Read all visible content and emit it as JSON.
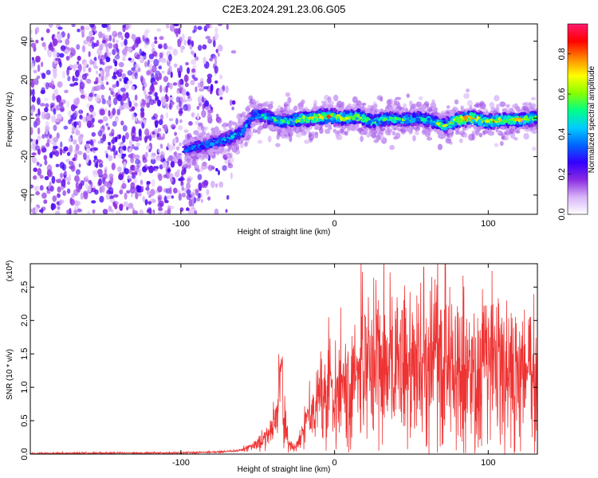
{
  "title": "C2E3.2024.291.23.06.G05",
  "chart_data": [
    {
      "type": "heatmap",
      "title": "C2E3.2024.291.23.06.G05",
      "xlabel": "Height of straight line (km)",
      "ylabel": "Frequency (Hz)",
      "xlim": [
        -198,
        132
      ],
      "ylim": [
        -50,
        49
      ],
      "x_ticks": [
        -100,
        0,
        100
      ],
      "y_ticks": [
        -40,
        -20,
        0,
        20,
        40
      ],
      "grid": false,
      "colorbar": {
        "label": "Normalized spectral amplitude",
        "range": [
          0,
          0.95
        ],
        "ticks": [
          0,
          0.2,
          0.4,
          0.6,
          0.8
        ],
        "tick_labels": [
          "0.0",
          "0.2",
          "0.4",
          "0.6",
          "0.8"
        ],
        "colormap": [
          "#ffffff",
          "#d8b4f8",
          "#8a2be2",
          "#3300ff",
          "#0066ff",
          "#00ccff",
          "#00ff88",
          "#88ff00",
          "#ffff00",
          "#ff8800",
          "#ff0000",
          "#ff1a6e"
        ]
      },
      "noise_region": {
        "x": [
          -198,
          -65
        ],
        "y": [
          -50,
          49
        ],
        "amplitude": [
          0.05,
          0.25
        ]
      },
      "signal_trace": [
        {
          "x": -98,
          "y": -17,
          "amplitude": 0.35
        },
        {
          "x": -90,
          "y": -15,
          "amplitude": 0.4
        },
        {
          "x": -80,
          "y": -13,
          "amplitude": 0.45
        },
        {
          "x": -70,
          "y": -11,
          "amplitude": 0.5
        },
        {
          "x": -60,
          "y": -7,
          "amplitude": 0.5
        },
        {
          "x": -52,
          "y": 2,
          "amplitude": 0.45
        },
        {
          "x": -45,
          "y": 1,
          "amplitude": 0.55
        },
        {
          "x": -35,
          "y": -2,
          "amplitude": 0.6
        },
        {
          "x": -25,
          "y": -1,
          "amplitude": 0.7
        },
        {
          "x": -15,
          "y": 0,
          "amplitude": 0.85
        },
        {
          "x": -5,
          "y": 1,
          "amplitude": 0.8
        },
        {
          "x": 5,
          "y": 0,
          "amplitude": 0.75
        },
        {
          "x": 15,
          "y": 1,
          "amplitude": 0.7
        },
        {
          "x": 25,
          "y": -2,
          "amplitude": 0.65
        },
        {
          "x": 35,
          "y": 0,
          "amplitude": 0.6
        },
        {
          "x": 45,
          "y": -1,
          "amplitude": 0.6
        },
        {
          "x": 55,
          "y": 0,
          "amplitude": 0.55
        },
        {
          "x": 65,
          "y": -2,
          "amplitude": 0.6
        },
        {
          "x": 72,
          "y": -4,
          "amplitude": 0.7
        },
        {
          "x": 80,
          "y": -1,
          "amplitude": 0.85
        },
        {
          "x": 90,
          "y": 0,
          "amplitude": 0.85
        },
        {
          "x": 100,
          "y": -2,
          "amplitude": 0.8
        },
        {
          "x": 110,
          "y": -1,
          "amplitude": 0.75
        },
        {
          "x": 120,
          "y": -1,
          "amplitude": 0.8
        },
        {
          "x": 131,
          "y": 0,
          "amplitude": 0.7
        }
      ]
    },
    {
      "type": "line",
      "xlabel": "Height of straight line (km)",
      "ylabel": "SNR (10 * v/v)",
      "y_scale_label": "(x10",
      "y_scale_exponent": "4",
      "y_scale_suffix": ")",
      "xlim": [
        -198,
        132
      ],
      "ylim": [
        0,
        2.85
      ],
      "x_ticks": [
        -100,
        0,
        100
      ],
      "y_ticks": [
        0,
        0.5,
        1,
        1.5,
        2,
        2.5
      ],
      "y_tick_labels": [
        "0.0",
        "0.5",
        "1.0",
        "1.5",
        "2.0",
        "2.5"
      ],
      "color": "#ee3333",
      "grid": false,
      "series_envelope": [
        {
          "x": -198,
          "y": 0.01
        },
        {
          "x": -150,
          "y": 0.015
        },
        {
          "x": -100,
          "y": 0.02
        },
        {
          "x": -75,
          "y": 0.03
        },
        {
          "x": -60,
          "y": 0.06
        },
        {
          "x": -50,
          "y": 0.15
        },
        {
          "x": -43,
          "y": 0.3
        },
        {
          "x": -37,
          "y": 0.55
        },
        {
          "x": -35,
          "y": 1.4
        },
        {
          "x": -33,
          "y": 0.6
        },
        {
          "x": -30,
          "y": 0.15
        },
        {
          "x": -25,
          "y": 0.1
        },
        {
          "x": -20,
          "y": 0.4
        },
        {
          "x": -15,
          "y": 0.7
        },
        {
          "x": -8,
          "y": 0.8
        },
        {
          "x": 0,
          "y": 1.0
        },
        {
          "x": 10,
          "y": 1.05
        },
        {
          "x": 20,
          "y": 1.25
        },
        {
          "x": 30,
          "y": 1.3
        },
        {
          "x": 40,
          "y": 1.3
        },
        {
          "x": 50,
          "y": 1.3
        },
        {
          "x": 60,
          "y": 1.4
        },
        {
          "x": 70,
          "y": 1.45
        },
        {
          "x": 80,
          "y": 1.15
        },
        {
          "x": 90,
          "y": 1.2
        },
        {
          "x": 100,
          "y": 1.3
        },
        {
          "x": 110,
          "y": 1.25
        },
        {
          "x": 120,
          "y": 1.15
        },
        {
          "x": 131,
          "y": 1.2
        }
      ],
      "peaks": [
        {
          "x": 58,
          "y": 2.8
        },
        {
          "x": 72,
          "y": 2.85
        },
        {
          "x": 44,
          "y": 2.15
        },
        {
          "x": 20,
          "y": 2.05
        }
      ]
    }
  ]
}
